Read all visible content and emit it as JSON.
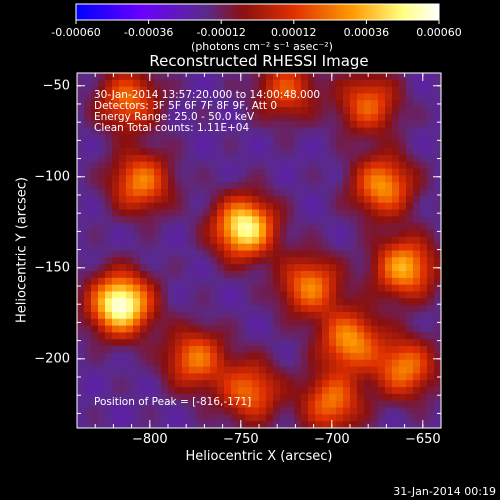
{
  "chart_data": {
    "type": "heatmap",
    "title": "Reconstructed RHESSI Image",
    "xlabel": "Heliocentric X (arcsec)",
    "ylabel": "Heliocentric Y (arcsec)",
    "xlim": [
      -840,
      -640
    ],
    "ylim": [
      -238,
      -43
    ],
    "xticks": [
      -800,
      -750,
      -700,
      -650
    ],
    "yticks": [
      -50,
      -100,
      -150,
      -200
    ],
    "colorbar": {
      "ticks": [
        "-0.00060",
        "-0.00036",
        "-0.00012",
        "0.00012",
        "0.00036",
        "0.00060"
      ],
      "range": [
        -0.0006,
        0.0006
      ],
      "units_label": "(photons cm⁻² s⁻¹ asec⁻²)",
      "colors": [
        "#0000ff",
        "#6a00ff",
        "#5a2a8a",
        "#8a1010",
        "#e03000",
        "#ff9a00",
        "#ffff80",
        "#ffffff"
      ]
    },
    "annotations": [
      "30-Jan-2014 13:57:20.000 to 14:00:48.000",
      "Detectors: 3F 5F 6F 7F 8F 9F, Att 0",
      "Energy Range: 25.0 - 50.0 keV",
      "Clean    Total counts: 1.11E+04"
    ],
    "peak_label": "Position of Peak = [-816,-171]",
    "peak_position": [
      -816,
      -171
    ],
    "sources": [
      {
        "x": -816,
        "y": -170,
        "intensity": 0.0006
      },
      {
        "x": -748,
        "y": -128,
        "intensity": 0.00052
      },
      {
        "x": -660,
        "y": -150,
        "intensity": 0.00034
      },
      {
        "x": -672,
        "y": -105,
        "intensity": 0.0003
      },
      {
        "x": -690,
        "y": -190,
        "intensity": 0.0003
      },
      {
        "x": -712,
        "y": -160,
        "intensity": 0.00026
      },
      {
        "x": -805,
        "y": -103,
        "intensity": 0.00026
      },
      {
        "x": -812,
        "y": -58,
        "intensity": 0.00022
      },
      {
        "x": -775,
        "y": -200,
        "intensity": 0.00024
      },
      {
        "x": -745,
        "y": -218,
        "intensity": 0.00022
      },
      {
        "x": -700,
        "y": -224,
        "intensity": 0.00024
      },
      {
        "x": -680,
        "y": -60,
        "intensity": 0.0002
      },
      {
        "x": -725,
        "y": -52,
        "intensity": 0.00016
      },
      {
        "x": -660,
        "y": -205,
        "intensity": 0.00026
      }
    ]
  },
  "footer": {
    "timestamp": "31-Jan-2014 00:19"
  }
}
